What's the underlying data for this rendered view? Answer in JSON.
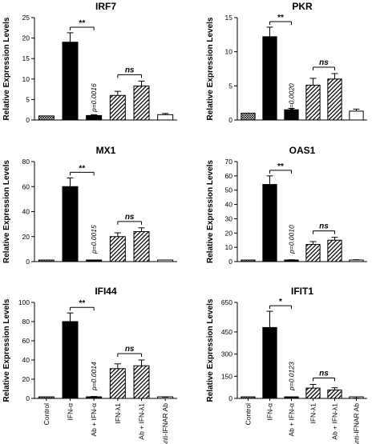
{
  "categories": [
    "Control",
    "IFN-α",
    "Ab + IFN-α",
    "IFN-λ1",
    "Ab + IFN-λ1",
    "Anti-IFNAR Ab"
  ],
  "ylabel": "Relative Expression Levels",
  "colors": {
    "solid": "#000000",
    "outline": "#000000",
    "background": "#ffffff"
  },
  "fills": [
    "crosshatch",
    "solid",
    "solid",
    "diagonal",
    "diagonal",
    "white"
  ],
  "chart_data": [
    {
      "type": "bar",
      "title": "IRF7",
      "ylabel": "Relative Expression Levels",
      "ylim": [
        0,
        25
      ],
      "yticks": [
        0,
        5,
        10,
        15,
        20,
        25
      ],
      "categories": [
        "Control",
        "IFN-α",
        "Ab + IFN-α",
        "IFN-λ1",
        "Ab + IFN-λ1",
        "Anti-IFNAR Ab"
      ],
      "values": [
        1.0,
        19.0,
        1.1,
        6.0,
        8.3,
        1.3
      ],
      "errors": [
        0,
        2.3,
        0.2,
        1.0,
        1.2,
        0.3
      ],
      "sig_ab": "**",
      "sig_cd": "ns",
      "pvalue": "p=0.0016"
    },
    {
      "type": "bar",
      "title": "PKR",
      "ylabel": "Relative Expression Levels",
      "ylim": [
        0,
        15
      ],
      "yticks": [
        0,
        5,
        10,
        15
      ],
      "categories": [
        "Control",
        "IFN-α",
        "Ab + IFN-α",
        "IFN-λ1",
        "Ab + IFN-λ1",
        "Anti-IFNAR Ab"
      ],
      "values": [
        1.0,
        12.2,
        1.5,
        5.1,
        6.0,
        1.3
      ],
      "errors": [
        0,
        1.4,
        0.2,
        1.0,
        0.8,
        0.3
      ],
      "sig_ab": "**",
      "sig_cd": "ns",
      "pvalue": "p=0.0020"
    },
    {
      "type": "bar",
      "title": "MX1",
      "ylabel": "Relative Expression Levels",
      "ylim": [
        0,
        80
      ],
      "yticks": [
        0,
        20,
        40,
        60,
        80
      ],
      "categories": [
        "Control",
        "IFN-α",
        "Ab + IFN-α",
        "IFN-λ1",
        "Ab + IFN-λ1",
        "Anti-IFNAR Ab"
      ],
      "values": [
        1.0,
        60.0,
        1.0,
        20.0,
        24.0,
        1.0
      ],
      "errors": [
        0,
        7.0,
        0.3,
        3.0,
        3.0,
        0.3
      ],
      "sig_ab": "**",
      "sig_cd": "ns",
      "pvalue": "p=0.0015"
    },
    {
      "type": "bar",
      "title": "OAS1",
      "ylabel": "Relative Expression Levels",
      "ylim": [
        0,
        70
      ],
      "yticks": [
        0,
        10,
        20,
        30,
        40,
        50,
        60,
        70
      ],
      "categories": [
        "Control",
        "IFN-α",
        "Ab + IFN-α",
        "IFN-λ1",
        "Ab + IFN-λ1",
        "Anti-IFNAR Ab"
      ],
      "values": [
        1.0,
        54.0,
        1.0,
        12.0,
        15.0,
        1.0
      ],
      "errors": [
        0,
        6.0,
        0.3,
        2.0,
        2.0,
        0.3
      ],
      "sig_ab": "**",
      "sig_cd": "ns",
      "pvalue": "p=0.0010"
    },
    {
      "type": "bar",
      "title": "IFI44",
      "ylabel": "Relative Expression Levels",
      "ylim": [
        0,
        100
      ],
      "yticks": [
        0,
        20,
        40,
        60,
        80,
        100
      ],
      "categories": [
        "Control",
        "IFN-α",
        "Ab + IFN-α",
        "IFN-λ1",
        "Ab + IFN-λ1",
        "Anti-IFNAR Ab"
      ],
      "values": [
        1.0,
        80.0,
        1.5,
        31.0,
        34.0,
        1.0
      ],
      "errors": [
        0,
        9.0,
        0.5,
        5.0,
        6.0,
        0.3
      ],
      "sig_ab": "**",
      "sig_cd": "ns",
      "pvalue": "p=0.0014"
    },
    {
      "type": "bar",
      "title": "IFIT1",
      "ylabel": "Relative Expression Levels",
      "ylim": [
        0,
        650
      ],
      "yticks": [
        0,
        150,
        300,
        450,
        650
      ],
      "categories": [
        "Control",
        "IFN-α",
        "Ab + IFN-α",
        "IFN-λ1",
        "Ab + IFN-λ1",
        "Anti-IFNAR Ab"
      ],
      "values": [
        1.0,
        480.0,
        1.0,
        70.0,
        57.0,
        1.0
      ],
      "errors": [
        0,
        110.0,
        0.5,
        25.0,
        15.0,
        0.5
      ],
      "sig_ab": "*",
      "sig_cd": "ns",
      "pvalue": "p=0.0123"
    }
  ]
}
